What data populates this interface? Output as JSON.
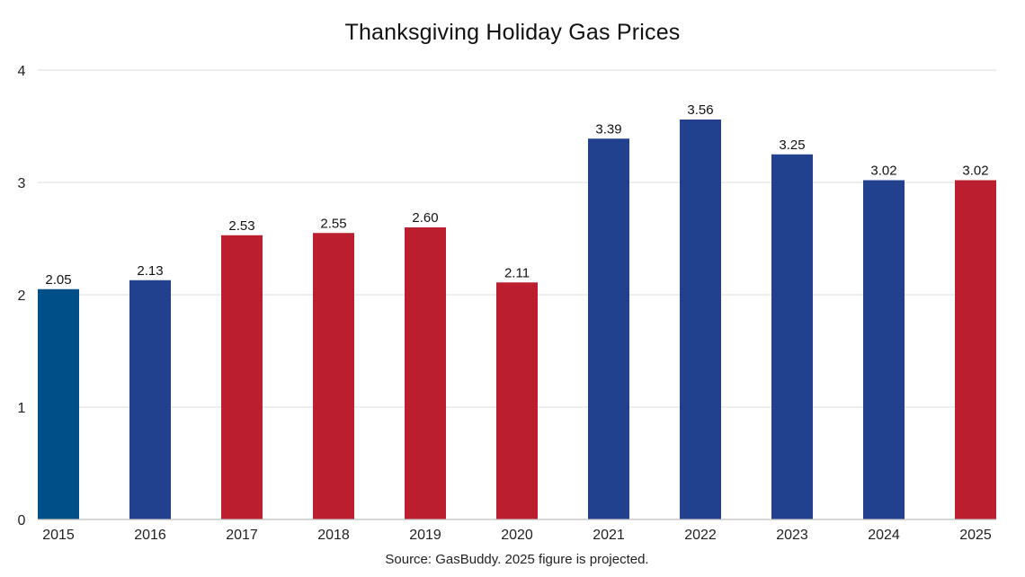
{
  "chart_data": {
    "type": "bar",
    "title": "Thanksgiving Holiday Gas Prices",
    "xlabel": "",
    "ylabel": "",
    "categories": [
      "2015",
      "2016",
      "2017",
      "2018",
      "2019",
      "2020",
      "2021",
      "2022",
      "2023",
      "2024",
      "2025"
    ],
    "values": [
      2.05,
      2.13,
      2.53,
      2.55,
      2.6,
      2.11,
      3.39,
      3.56,
      3.25,
      3.02,
      3.02
    ],
    "value_labels": [
      "2.05",
      "2.13",
      "2.53",
      "2.55",
      "2.60",
      "2.11",
      "3.39",
      "3.56",
      "3.25",
      "3.02",
      "3.02"
    ],
    "bar_colors": [
      "#004f88",
      "#21408d",
      "#bb1f2f",
      "#bb1f2f",
      "#bb1f2f",
      "#bb1f2f",
      "#21408d",
      "#21408d",
      "#21408d",
      "#21408d",
      "#bb1f2f"
    ],
    "ylim": [
      0,
      4
    ],
    "yticks": [
      "0",
      "1",
      "2",
      "3",
      "4"
    ],
    "grid": true,
    "legend": "none",
    "source": "Source: GasBuddy. 2025 figure is projected."
  }
}
